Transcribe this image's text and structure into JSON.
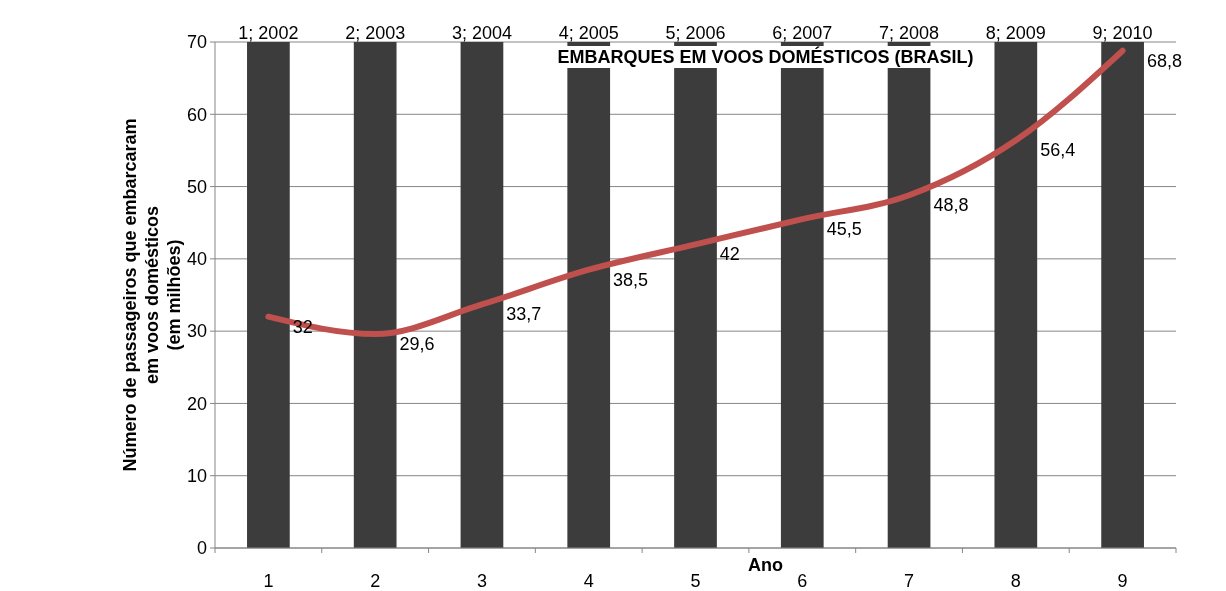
{
  "chart_data": {
    "type": "bar",
    "title": "EMBARQUES EM VOOS DOMÉSTICOS (BRASIL)",
    "xlabel": "Ano",
    "ylabel": "Número de passageiros que embarcaram\nem voos domésticos\n(em milhões)",
    "categories": [
      "1",
      "2",
      "3",
      "4",
      "5",
      "6",
      "7",
      "8",
      "9"
    ],
    "series": [
      {
        "color": "#3c3c3c",
        "values": [
          70,
          70,
          70,
          70,
          70,
          70,
          70,
          70,
          70
        ]
      },
      {
        "type": "line",
        "color": "#c0504d",
        "values": [
          32,
          29.6,
          33.7,
          38.5,
          42,
          45.5,
          48.8,
          56.4,
          68.8
        ],
        "value_labels": [
          "32",
          "29,6",
          "33,7",
          "38,5",
          "42",
          "45,5",
          "48,8",
          "56,4",
          "68,8"
        ]
      }
    ],
    "annotations": [
      {
        "text": "1; 2002",
        "x": "1",
        "y": 70
      },
      {
        "text": "2; 2003",
        "x": "2",
        "y": 70
      },
      {
        "text": "3; 2004",
        "x": "3",
        "y": 70
      },
      {
        "text": "4; 2005",
        "x": "4",
        "y": 70
      },
      {
        "text": "5; 2006",
        "x": "5",
        "y": 70
      },
      {
        "text": "6; 2007",
        "x": "6",
        "y": 70
      },
      {
        "text": "7; 2008",
        "x": "7",
        "y": 70
      },
      {
        "text": "8; 2009",
        "x": "8",
        "y": 70
      },
      {
        "text": "9; 2010",
        "x": "9",
        "y": 70
      }
    ],
    "ylim": [
      0,
      70
    ],
    "yticks": [
      0,
      10,
      20,
      30,
      40,
      50,
      60,
      70
    ],
    "grid": "y"
  }
}
